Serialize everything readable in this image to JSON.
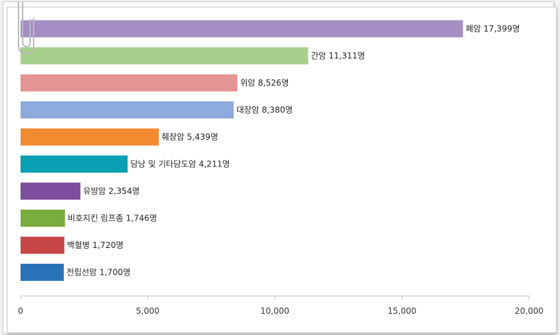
{
  "chart_data": {
    "type": "bar",
    "orientation": "horizontal",
    "title": "",
    "xlabel": "",
    "ylabel": "",
    "grid": false,
    "xlim": [
      0,
      20000
    ],
    "ticks": [
      {
        "value": 0,
        "label": "0"
      },
      {
        "value": 5000,
        "label": "5,000"
      },
      {
        "value": 10000,
        "label": "10,000"
      },
      {
        "value": 15000,
        "label": "15,000"
      },
      {
        "value": 20000,
        "label": "20,000"
      }
    ],
    "bars": [
      {
        "label": "폐암 17,399명",
        "value": 17399,
        "color": "#a48fc4"
      },
      {
        "label": "간암 11,311명",
        "value": 11311,
        "color": "#a8d08d"
      },
      {
        "label": "위암 8,526명",
        "value": 8526,
        "color": "#e59494"
      },
      {
        "label": "대장암 8,380명",
        "value": 8380,
        "color": "#8faadc"
      },
      {
        "label": "췌장암 5,439명",
        "value": 5439,
        "color": "#f28b30"
      },
      {
        "label": "담낭 및 기타담도암 4,211명",
        "value": 4211,
        "color": "#0aa0b4"
      },
      {
        "label": "유방암 2,354명",
        "value": 2354,
        "color": "#7b4e9e"
      },
      {
        "label": "비호지킨 림프종 1,746명",
        "value": 1746,
        "color": "#7aac3e"
      },
      {
        "label": "백혈병 1,720명",
        "value": 1720,
        "color": "#c84545"
      },
      {
        "label": "전립선암 1,700명",
        "value": 1700,
        "color": "#2a72b8"
      }
    ]
  }
}
